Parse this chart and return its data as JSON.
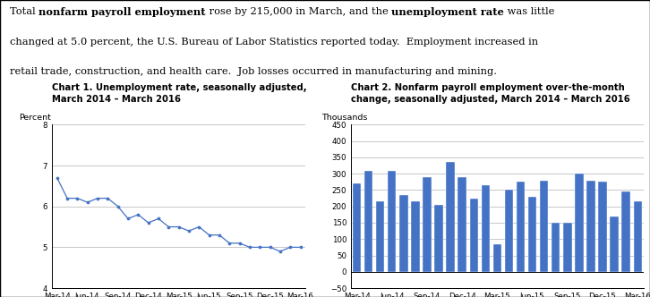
{
  "chart1_title": "Chart 1. Unemployment rate, seasonally adjusted,\nMarch 2014 – March 2016",
  "chart2_title": "Chart 2. Nonfarm payroll employment over-the-month\nchange, seasonally adjusted, March 2014 – March 2016",
  "chart1_ylabel": "Percent",
  "chart2_ylabel": "Thousands",
  "chart1_ylim": [
    4.0,
    8.0
  ],
  "chart1_yticks": [
    4.0,
    5.0,
    6.0,
    7.0,
    8.0
  ],
  "chart2_ylim": [
    -50,
    450
  ],
  "chart2_yticks": [
    -50,
    0,
    50,
    100,
    150,
    200,
    250,
    300,
    350,
    400,
    450
  ],
  "unemp_data": [
    6.7,
    6.2,
    6.2,
    6.1,
    6.2,
    6.2,
    6.0,
    5.7,
    5.8,
    5.6,
    5.7,
    5.5,
    5.5,
    5.4,
    5.5,
    5.3,
    5.3,
    5.1,
    5.1,
    5.0,
    5.0,
    5.0,
    4.9,
    5.0,
    5.0
  ],
  "unemp_xtick_positions": [
    0,
    3,
    6,
    9,
    12,
    15,
    18,
    21,
    24
  ],
  "unemp_xtick_labels": [
    "Mar-14",
    "Jun-14",
    "Sep-14",
    "Dec-14",
    "Mar-15",
    "Jun-15",
    "Sep-15",
    "Dec-15",
    "Mar-16"
  ],
  "payroll_data": [
    270,
    310,
    215,
    310,
    235,
    215,
    290,
    205,
    335,
    290,
    225,
    265,
    85,
    250,
    275,
    230,
    280,
    150,
    150,
    300,
    280,
    275,
    170,
    245,
    215
  ],
  "payroll_xtick_positions": [
    0,
    3,
    6,
    9,
    12,
    15,
    18,
    21,
    24
  ],
  "payroll_xtick_labels": [
    "Mar-14",
    "Jun-14",
    "Sep-14",
    "Dec-14",
    "Mar-15",
    "Jun-15",
    "Sep-15",
    "Dec-15",
    "Mar-16"
  ],
  "bar_color": "#4472C4",
  "line_color": "#4472C4",
  "background_color": "#ffffff",
  "grid_color": "#b0b0b0",
  "border_color": "#000000",
  "font_size_title": 7.2,
  "font_size_axis_label": 6.8,
  "font_size_tick": 6.2,
  "font_size_header": 8.2,
  "header_line1_normal1": "Total ",
  "header_line1_bold1": "nonfarm payroll employment",
  "header_line1_normal2": " rose by 215,000 in March, and the ",
  "header_line1_bold2": "unemployment rate",
  "header_line1_normal3": " was little",
  "header_line2": "changed at 5.0 percent, the U.S. Bureau of Labor Statistics reported today.  Employment increased in",
  "header_line3": "retail trade, construction, and health care.  Job losses occurred in manufacturing and mining."
}
